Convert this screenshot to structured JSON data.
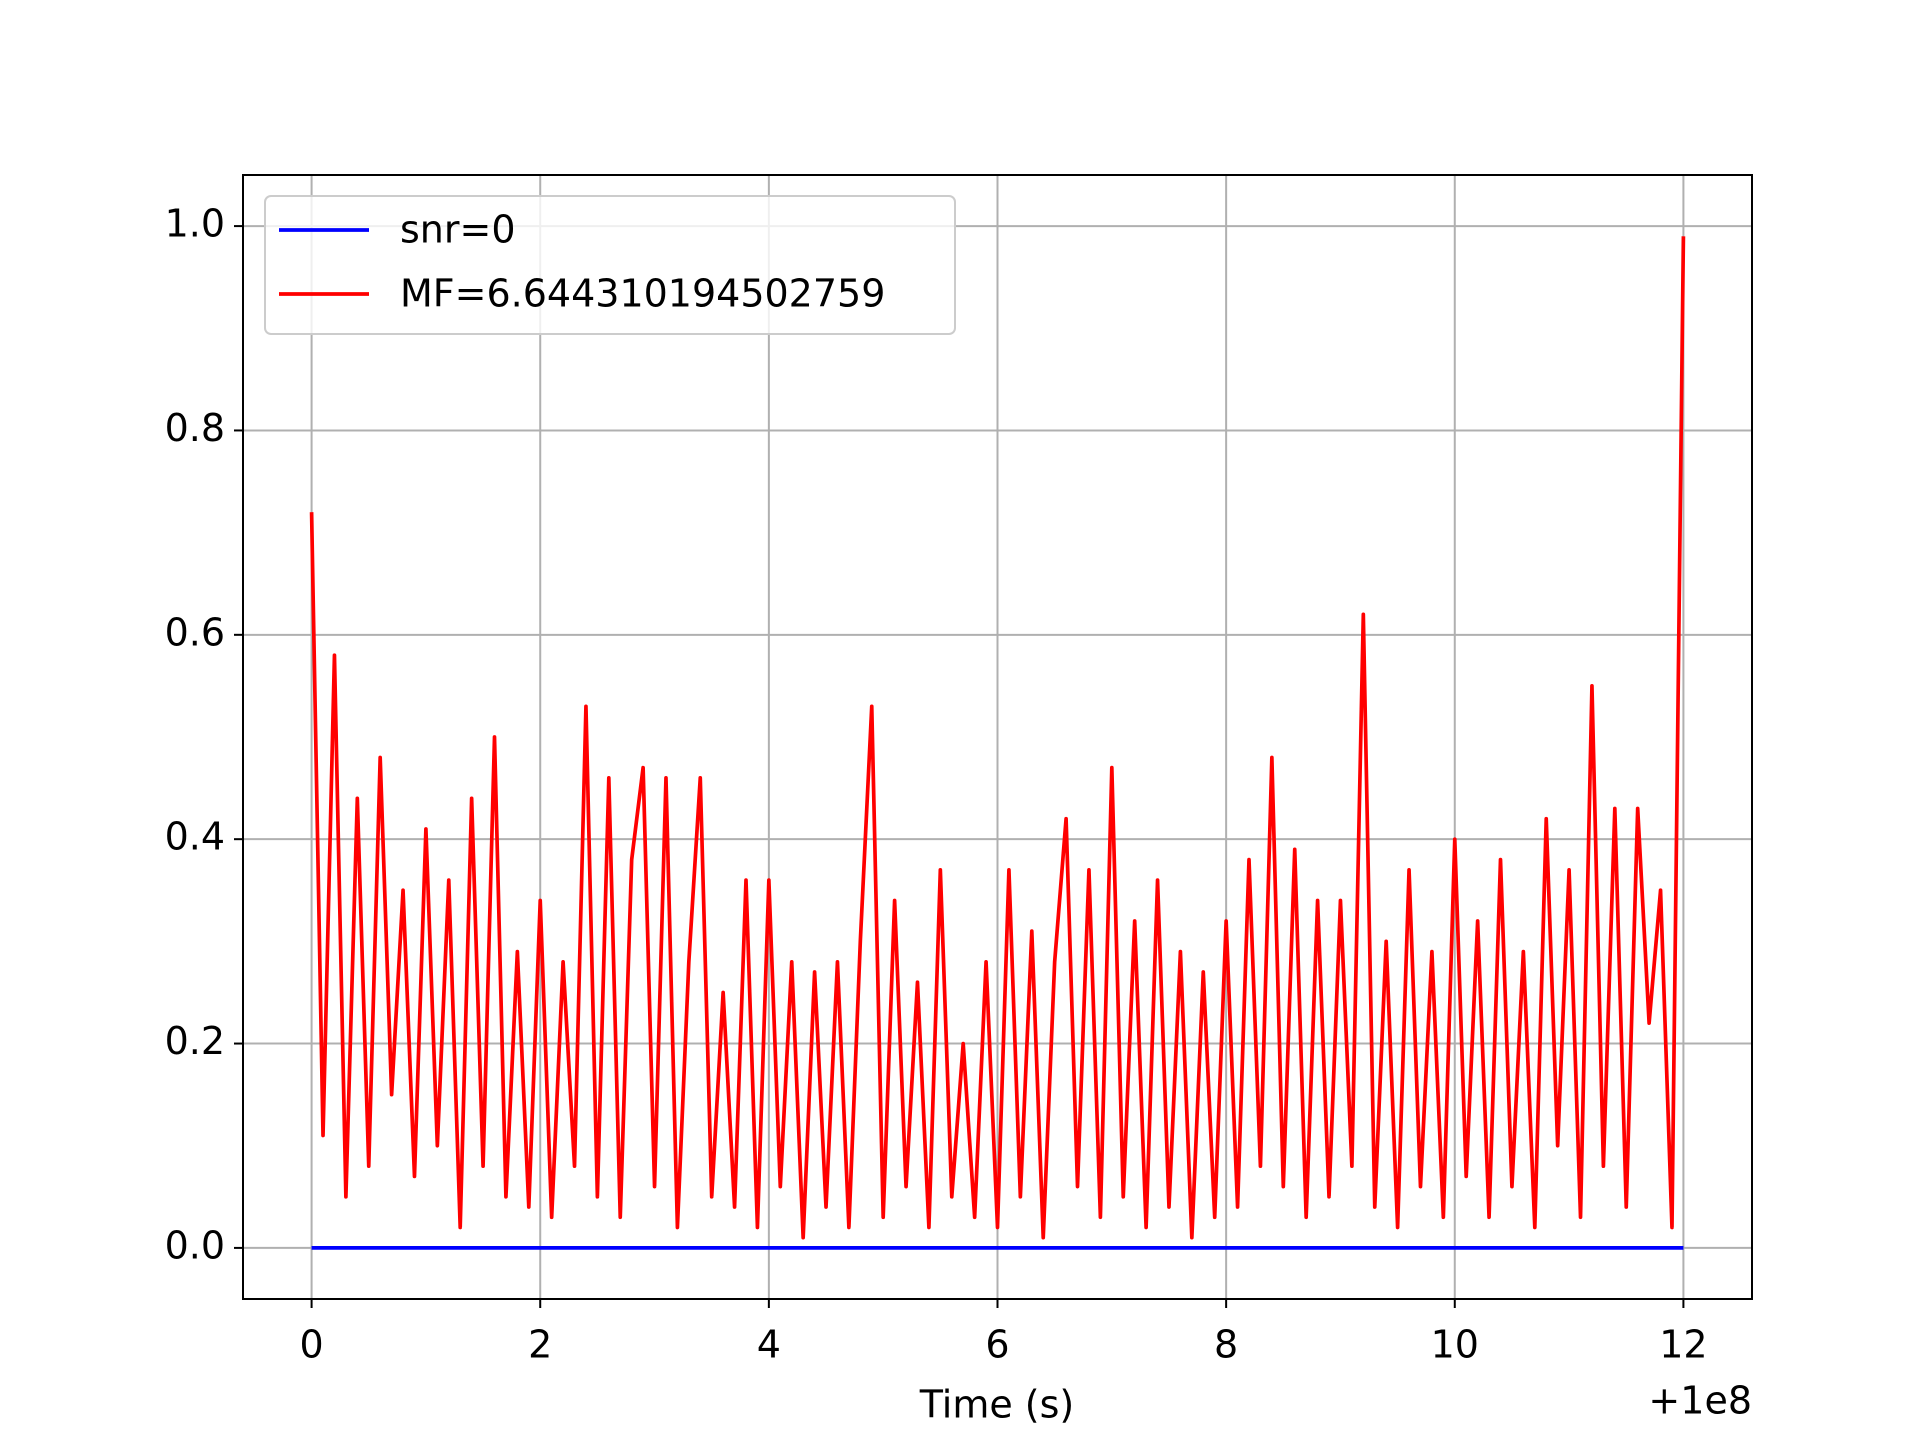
{
  "chart_data": {
    "type": "line",
    "x_label": "Time (s)",
    "x_offset_label": "+1e8",
    "x": [
      0,
      0.1,
      0.2,
      0.3,
      0.4,
      0.5,
      0.6,
      0.7,
      0.8,
      0.9,
      1,
      1.1,
      1.2,
      1.3,
      1.4,
      1.5,
      1.6,
      1.7,
      1.8,
      1.9,
      2,
      2.1,
      2.2,
      2.3,
      2.4,
      2.5,
      2.6,
      2.7,
      2.8,
      2.9,
      3,
      3.1,
      3.2,
      3.3,
      3.4,
      3.5,
      3.6,
      3.7,
      3.8,
      3.9,
      4,
      4.1,
      4.2,
      4.3,
      4.4,
      4.5,
      4.6,
      4.7,
      4.8,
      4.9,
      5,
      5.1,
      5.2,
      5.3,
      5.4,
      5.5,
      5.6,
      5.7,
      5.8,
      5.9,
      6,
      6.1,
      6.2,
      6.3,
      6.4,
      6.5,
      6.6,
      6.7,
      6.8,
      6.9,
      7,
      7.1,
      7.2,
      7.3,
      7.4,
      7.5,
      7.6,
      7.7,
      7.8,
      7.9,
      8,
      8.1,
      8.2,
      8.3,
      8.4,
      8.5,
      8.6,
      8.7,
      8.8,
      8.9,
      9,
      9.1,
      9.2,
      9.3,
      9.4,
      9.5,
      9.6,
      9.7,
      9.8,
      9.9,
      10,
      10.1,
      10.2,
      10.3,
      10.4,
      10.5,
      10.6,
      10.7,
      10.8,
      10.9,
      11,
      11.1,
      11.2,
      11.3,
      11.4,
      11.5,
      11.6,
      11.7,
      11.8,
      11.9,
      12
    ],
    "series": [
      {
        "name": "snr=0",
        "color": "#0000ff",
        "values": [
          0,
          0,
          0,
          0,
          0,
          0,
          0,
          0,
          0,
          0,
          0,
          0,
          0,
          0,
          0,
          0,
          0,
          0,
          0,
          0,
          0,
          0,
          0,
          0,
          0,
          0,
          0,
          0,
          0,
          0,
          0,
          0,
          0,
          0,
          0,
          0,
          0,
          0,
          0,
          0,
          0,
          0,
          0,
          0,
          0,
          0,
          0,
          0,
          0,
          0,
          0,
          0,
          0,
          0,
          0,
          0,
          0,
          0,
          0,
          0,
          0,
          0,
          0,
          0,
          0,
          0,
          0,
          0,
          0,
          0,
          0,
          0,
          0,
          0,
          0,
          0,
          0,
          0,
          0,
          0,
          0,
          0,
          0,
          0,
          0,
          0,
          0,
          0,
          0,
          0,
          0,
          0,
          0,
          0,
          0,
          0,
          0,
          0,
          0,
          0,
          0,
          0,
          0,
          0,
          0,
          0,
          0,
          0,
          0,
          0,
          0,
          0,
          0,
          0,
          0,
          0,
          0,
          0,
          0,
          0,
          0
        ]
      },
      {
        "name": "MF=6.644310194502759",
        "color": "#ff0000",
        "values": [
          0.72,
          0.11,
          0.58,
          0.05,
          0.44,
          0.08,
          0.48,
          0.15,
          0.35,
          0.07,
          0.41,
          0.1,
          0.36,
          0.02,
          0.44,
          0.08,
          0.5,
          0.05,
          0.29,
          0.04,
          0.34,
          0.03,
          0.28,
          0.08,
          0.53,
          0.05,
          0.46,
          0.03,
          0.38,
          0.47,
          0.06,
          0.46,
          0.02,
          0.28,
          0.46,
          0.05,
          0.25,
          0.04,
          0.36,
          0.02,
          0.36,
          0.06,
          0.28,
          0.01,
          0.27,
          0.04,
          0.28,
          0.02,
          0.3,
          0.53,
          0.03,
          0.34,
          0.06,
          0.26,
          0.02,
          0.37,
          0.05,
          0.2,
          0.03,
          0.28,
          0.02,
          0.37,
          0.05,
          0.31,
          0.01,
          0.28,
          0.42,
          0.06,
          0.37,
          0.03,
          0.47,
          0.05,
          0.32,
          0.02,
          0.36,
          0.04,
          0.29,
          0.01,
          0.27,
          0.03,
          0.32,
          0.04,
          0.38,
          0.08,
          0.48,
          0.06,
          0.39,
          0.03,
          0.34,
          0.05,
          0.34,
          0.08,
          0.62,
          0.04,
          0.3,
          0.02,
          0.37,
          0.06,
          0.29,
          0.03,
          0.4,
          0.07,
          0.32,
          0.03,
          0.38,
          0.06,
          0.29,
          0.02,
          0.42,
          0.1,
          0.37,
          0.03,
          0.55,
          0.08,
          0.43,
          0.04,
          0.43,
          0.22,
          0.35,
          0.02,
          0.99
        ]
      }
    ],
    "xlim": [
      -0.6,
      12.6
    ],
    "ylim": [
      -0.05,
      1.05
    ],
    "xticks": [
      0,
      2,
      4,
      6,
      8,
      10,
      12
    ],
    "yticks": [
      {
        "value": 0,
        "label": "0.0"
      },
      {
        "value": 0.2,
        "label": "0.2"
      },
      {
        "value": 0.4,
        "label": "0.4"
      },
      {
        "value": 0.6,
        "label": "0.6"
      },
      {
        "value": 0.8,
        "label": "0.8"
      },
      {
        "value": 1,
        "label": "1.0"
      }
    ],
    "grid": true,
    "legend": "upper left"
  }
}
